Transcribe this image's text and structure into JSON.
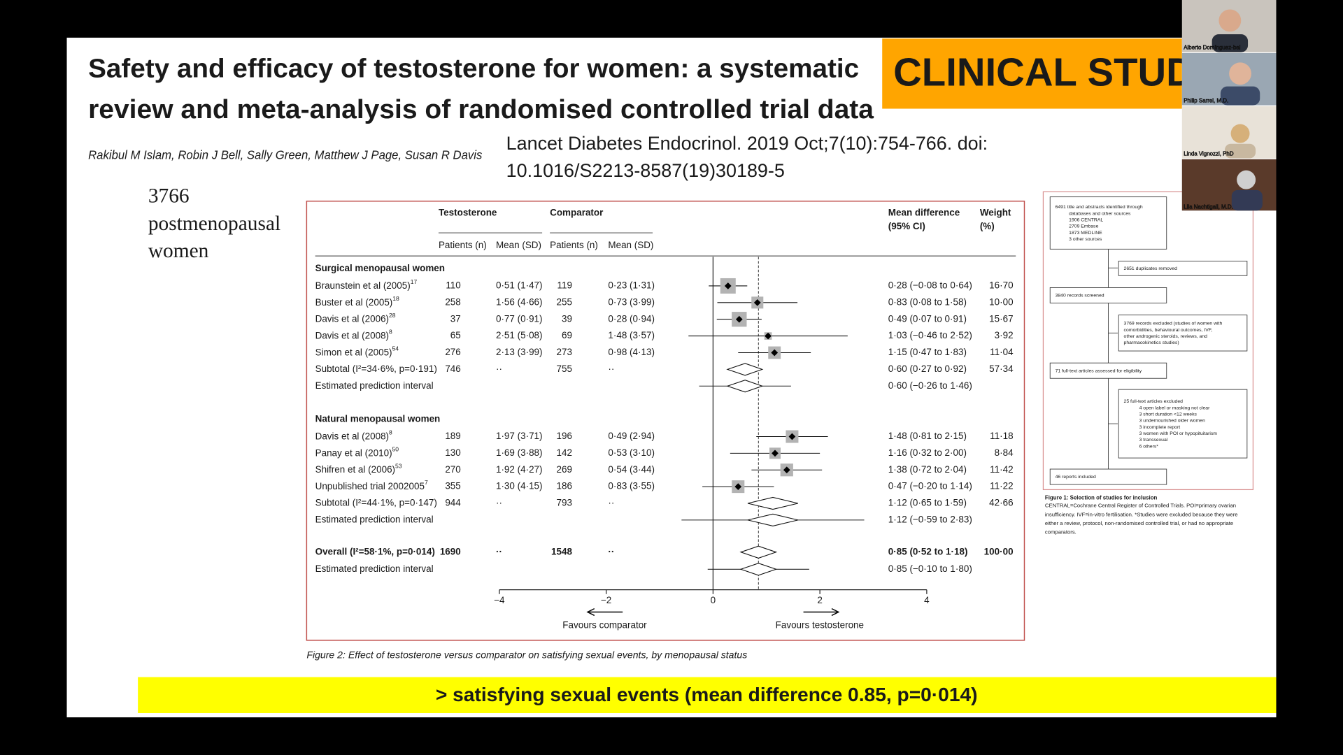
{
  "slide": {
    "title_lines": [
      "Safety and efficacy of testosterone for women: a systematic",
      "review and meta-analysis of randomised controlled trial data"
    ],
    "banner": "CLINICAL STUDIES",
    "authors": "Rakibul M Islam, Robin J Bell, Sally Green, Matthew J Page, Susan R Davis",
    "citation_lines": [
      "Lancet Diabetes Endocrinol. 2019 Oct;7(10):754-766. doi:",
      "10.1016/S2213-8587(19)30189-5"
    ],
    "note_lines": [
      "3766",
      "postmenopausal",
      "women"
    ],
    "highlight": "> satisfying sexual events (mean difference 0.85, p=0·014)"
  },
  "forest_plot": {
    "headers": {
      "testosterone": "Testosterone",
      "comparator": "Comparator",
      "t_n": "Patients (n)",
      "t_mean": "Mean (SD)",
      "c_n": "Patients (n)",
      "c_mean": "Mean (SD)",
      "md_1": "Mean difference",
      "md_2": "(95% CI)",
      "weight_1": "Weight",
      "weight_2": "(%)"
    },
    "groups": [
      {
        "name": "Surgical menopausal women",
        "studies": [
          {
            "study": "Braunstein et al (2005)",
            "ref": "17",
            "t_n": 110,
            "t_mean": "0·51 (1·47)",
            "c_n": 119,
            "c_mean": "0·23 (1·31)",
            "effect": {
              "value": 0.28,
              "low": -0.08,
              "high": 0.64,
              "label": "0·28 (−0·08 to 0·64)"
            },
            "weight": {
              "value": 16.7,
              "label": "16·70"
            }
          },
          {
            "study": "Buster et al (2005)",
            "ref": "18",
            "t_n": 258,
            "t_mean": "1·56 (4·66)",
            "c_n": 255,
            "c_mean": "0·73 (3·99)",
            "effect": {
              "value": 0.83,
              "low": 0.08,
              "high": 1.58,
              "label": "0·83 (0·08 to 1·58)"
            },
            "weight": {
              "value": 10,
              "label": "10·00"
            }
          },
          {
            "study": "Davis et al (2006)",
            "ref": "28",
            "t_n": 37,
            "t_mean": "0·77 (0·91)",
            "c_n": 39,
            "c_mean": "0·28 (0·94)",
            "effect": {
              "value": 0.49,
              "low": 0.07,
              "high": 0.91,
              "label": "0·49 (0·07 to 0·91)"
            },
            "weight": {
              "value": 15.67,
              "label": "15·67"
            }
          },
          {
            "study": "Davis et al (2008)",
            "ref": "8",
            "t_n": 65,
            "t_mean": "2·51 (5·08)",
            "c_n": 69,
            "c_mean": "1·48 (3·57)",
            "effect": {
              "value": 1.03,
              "low": -0.46,
              "high": 2.52,
              "label": "1·03 (−0·46 to 2·52)"
            },
            "weight": {
              "value": 3.92,
              "label": "3·92"
            }
          },
          {
            "study": "Simon et al (2005)",
            "ref": "54",
            "t_n": 276,
            "t_mean": "2·13 (3·99)",
            "c_n": 273,
            "c_mean": "0·98 (4·13)",
            "effect": {
              "value": 1.15,
              "low": 0.47,
              "high": 1.83,
              "label": "1·15 (0·47 to 1·83)"
            },
            "weight": {
              "value": 11.04,
              "label": "11·04"
            }
          }
        ],
        "subtotal": {
          "label": "Subtotal (I²=34·6%, p=0·191)",
          "t_n": 746,
          "t_mean": "··",
          "c_n": 755,
          "c_mean": "··",
          "effect": {
            "value": 0.6,
            "low": 0.27,
            "high": 0.92,
            "label": "0·60 (0·27 to 0·92)"
          },
          "weight": {
            "value": 57.34,
            "label": "57·34"
          }
        },
        "prediction": {
          "label": "Estimated prediction interval",
          "effect": {
            "value": 0.6,
            "low": -0.26,
            "high": 1.46,
            "label": "0·60 (−0·26 to 1·46)"
          }
        }
      },
      {
        "name": "Natural menopausal women",
        "studies": [
          {
            "study": "Davis et al (2008)",
            "ref": "8",
            "t_n": 189,
            "t_mean": "1·97 (3·71)",
            "c_n": 196,
            "c_mean": "0·49 (2·94)",
            "effect": {
              "value": 1.48,
              "low": 0.81,
              "high": 2.15,
              "label": "1·48 (0·81 to 2·15)"
            },
            "weight": {
              "value": 11.18,
              "label": "11·18"
            }
          },
          {
            "study": "Panay et al (2010)",
            "ref": "50",
            "t_n": 130,
            "t_mean": "1·69 (3·88)",
            "c_n": 142,
            "c_mean": "0·53 (3·10)",
            "effect": {
              "value": 1.16,
              "low": 0.32,
              "high": 2,
              "label": "1·16 (0·32 to 2·00)"
            },
            "weight": {
              "value": 8.84,
              "label": "8·84"
            }
          },
          {
            "study": "Shifren et al (2006)",
            "ref": "53",
            "t_n": 270,
            "t_mean": "1·92 (4·27)",
            "c_n": 269,
            "c_mean": "0·54 (3·44)",
            "effect": {
              "value": 1.38,
              "low": 0.72,
              "high": 2.04,
              "label": "1·38 (0·72 to 2·04)"
            },
            "weight": {
              "value": 11.42,
              "label": "11·42"
            }
          },
          {
            "study": "Unpublished trial 2002005",
            "ref": "7",
            "t_n": 355,
            "t_mean": "1·30 (4·15)",
            "c_n": 186,
            "c_mean": "0·83 (3·55)",
            "effect": {
              "value": 0.47,
              "low": -0.2,
              "high": 1.14,
              "label": "0·47 (−0·20 to 1·14)"
            },
            "weight": {
              "value": 11.22,
              "label": "11·22"
            }
          }
        ],
        "subtotal": {
          "label": "Subtotal (I²=44·1%, p=0·147)",
          "t_n": 944,
          "t_mean": "··",
          "c_n": 793,
          "c_mean": "··",
          "effect": {
            "value": 1.12,
            "low": 0.65,
            "high": 1.59,
            "label": "1·12 (0·65 to 1·59)"
          },
          "weight": {
            "value": 42.66,
            "label": "42·66"
          }
        },
        "prediction": {
          "label": "Estimated prediction interval",
          "effect": {
            "value": 1.12,
            "low": -0.59,
            "high": 2.83,
            "label": "1·12 (−0·59 to 2·83)"
          }
        }
      }
    ],
    "overall": {
      "label": "Overall (I²=58·1%, p=0·014)",
      "t_n": 1690,
      "t_mean": "··",
      "c_n": 1548,
      "c_mean": "··",
      "effect": {
        "value": 0.85,
        "low": 0.52,
        "high": 1.18,
        "label": "0·85 (0·52 to 1·18)"
      },
      "weight": {
        "value": 100,
        "label": "100·00"
      }
    },
    "overall_prediction": {
      "label": "Estimated prediction interval",
      "effect": {
        "value": 0.85,
        "low": -0.1,
        "high": 1.8,
        "label": "0·85 (−0·10 to 1·80)"
      }
    },
    "xlim": [
      -4,
      4
    ],
    "xticks": [
      {
        "value": -4,
        "label": "−4"
      },
      {
        "value": -2,
        "label": "−2"
      },
      0,
      2,
      4
    ],
    "favours_left": "Favours comparator",
    "favours_right": "Favours testosterone",
    "caption": "Figure 2: Effect of testosterone versus comparator on satisfying sexual events, by menopausal status"
  },
  "flow_chart": {
    "boxes": [
      {
        "lines": [
          "6491 title and abstracts identified through",
          "databases and other sources",
          "1906 CENTRAL",
          "2709 Embase",
          "1873 MEDLINE",
          "3 other sources"
        ]
      },
      {
        "lines": [
          "2651 duplicates removed"
        ]
      },
      {
        "lines": [
          "3840 records screened"
        ]
      },
      {
        "lines": [
          "3769 records excluded (studies of women with",
          "comorbidities, behavioural outcomes, IVF,",
          "other androgenic steroids, reviews, and",
          "pharmacokinetics studies)"
        ]
      },
      {
        "lines": [
          "71 full-text articles assessed for eligibility"
        ]
      },
      {
        "lines": [
          "25 full-text articles excluded",
          "4 open label or masking not clear",
          "3 short duration <12 weeks",
          "3 undernourished older women",
          "3 incomplete report",
          "3 women with POI or hypopituitarism",
          "3 transsexual",
          "6 others*"
        ]
      },
      {
        "lines": [
          "46 reports included"
        ]
      }
    ],
    "caption_title": "Figure 1: Selection of studies for inclusion",
    "caption_lines": [
      "CENTRAL=Cochrane Central Register of Controlled Trials. POI=primary ovarian",
      "insufficiency. IVF=in-vitro fertilisation. *Studies were excluded because they were",
      "either a review, protocol, non-randomised controlled trial, or had no appropriate",
      "comparators."
    ]
  },
  "participants": [
    "Alberto Domínguez-bal",
    "Philip Sarrel, M.D.",
    "Linda Vignozzi, PhD",
    "Lila Nachtigall, M.D."
  ]
}
